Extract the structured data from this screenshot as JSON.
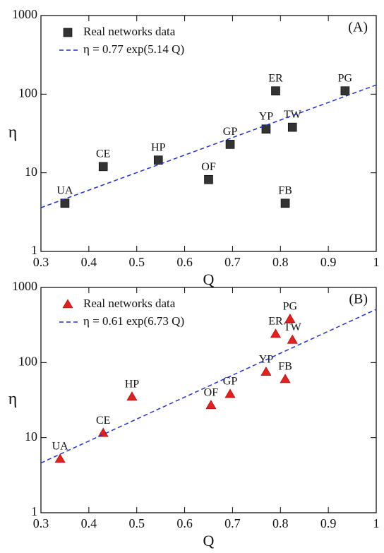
{
  "chart_data": [
    {
      "type": "scatter",
      "annotation": "(A)",
      "xlabel": "Q",
      "ylabel": "η",
      "log_y": true,
      "xlim": [
        0.3,
        1
      ],
      "ylim": [
        1,
        1000
      ],
      "xticks": [
        0.3,
        0.4,
        0.5,
        0.6,
        0.7,
        0.8,
        0.9,
        1
      ],
      "yticks": [
        1,
        10,
        100,
        1000
      ],
      "legend": "upper left",
      "series": [
        {
          "name": "Real networks data",
          "color": "#333333",
          "marker": "square",
          "x": [
            0.35,
            0.43,
            0.545,
            0.65,
            0.695,
            0.77,
            0.79,
            0.825,
            0.81,
            0.935
          ],
          "values": [
            4.1,
            12,
            14.5,
            8.2,
            23,
            36,
            110,
            38,
            4.1,
            110
          ],
          "point_labels": [
            "UA",
            "CE",
            "HP",
            "OF",
            "GP",
            "YP",
            "ER",
            "TW",
            "FB",
            "PG"
          ]
        },
        {
          "name": "η = 0.77 exp(5.14 Q)",
          "color": "#2233cc",
          "line": "dashed",
          "x": [
            0.3,
            1
          ],
          "values": [
            3.6,
            131
          ]
        }
      ]
    },
    {
      "type": "scatter",
      "annotation": "(B)",
      "xlabel": "Q",
      "ylabel": "η",
      "log_y": true,
      "xlim": [
        0.3,
        1
      ],
      "ylim": [
        1,
        1000
      ],
      "xticks": [
        0.3,
        0.4,
        0.5,
        0.6,
        0.7,
        0.8,
        0.9,
        1
      ],
      "yticks": [
        1,
        10,
        100,
        1000
      ],
      "legend": "upper left",
      "series": [
        {
          "name": "Real networks data",
          "color": "#dd2222",
          "marker": "triangle",
          "x": [
            0.34,
            0.43,
            0.49,
            0.655,
            0.695,
            0.77,
            0.81,
            0.79,
            0.82,
            0.825
          ],
          "values": [
            5.2,
            11.5,
            35,
            27,
            38,
            75,
            60,
            240,
            380,
            200
          ],
          "point_labels": [
            "UA",
            "CE",
            "HP",
            "OF",
            "GP",
            "YP",
            "FB",
            "ER",
            "PG",
            "TW"
          ]
        },
        {
          "name": "η = 0.61 exp(6.73 Q)",
          "color": "#2233cc",
          "line": "dashed",
          "x": [
            0.3,
            1
          ],
          "values": [
            4.6,
            511
          ]
        }
      ]
    }
  ]
}
